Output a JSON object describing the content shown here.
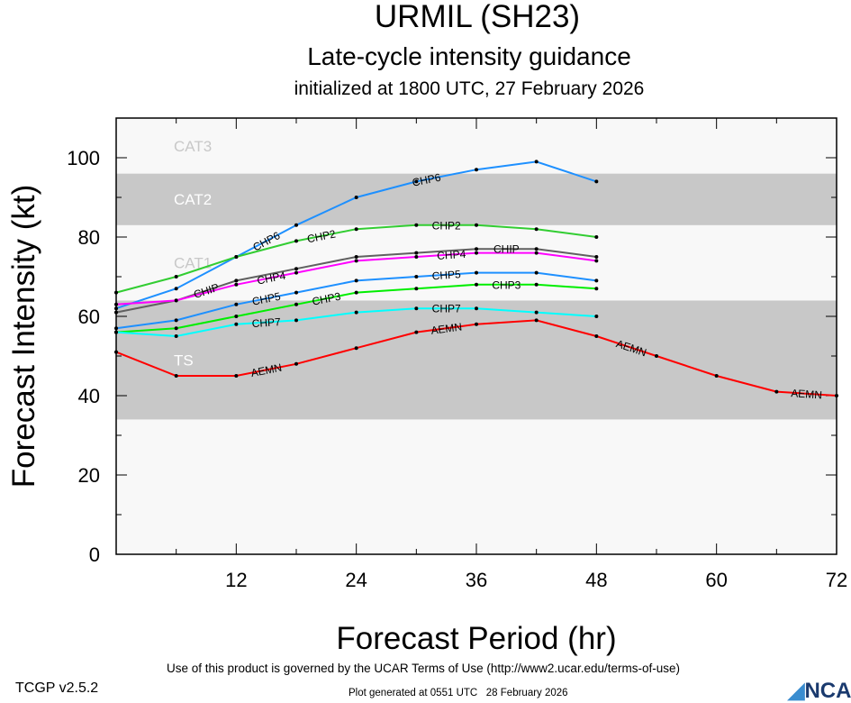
{
  "chart_data": {
    "type": "line",
    "title": "URMIL (SH23)",
    "subtitle": "Late-cycle intensity guidance",
    "subtitle2": "initialized at 1800 UTC, 27 February 2026",
    "xlabel": "Forecast Period (hr)",
    "ylabel": "Forecast Intensity (kt)",
    "xlim": [
      0,
      72
    ],
    "ylim": [
      0,
      110
    ],
    "xticks": [
      12,
      24,
      36,
      48,
      60,
      72
    ],
    "yticks": [
      0,
      20,
      40,
      60,
      80,
      100
    ],
    "bands": [
      {
        "label": "TS",
        "from": 34,
        "to": 64,
        "color": "#c8c8c8"
      },
      {
        "label": "CAT1",
        "from": 64,
        "to": 83,
        "color": "#f8f8f8"
      },
      {
        "label": "CAT2",
        "from": 83,
        "to": 96,
        "color": "#c8c8c8"
      },
      {
        "label": "CAT3",
        "from": 96,
        "to": 110,
        "color": "#f8f8f8"
      }
    ],
    "series": [
      {
        "name": "CHP6",
        "color": "#1e90ff",
        "label_at": [
          15,
          31
        ],
        "x": [
          0,
          6,
          12,
          18,
          24,
          30,
          36,
          42,
          48
        ],
        "y": [
          62,
          67,
          75,
          83,
          90,
          94,
          97,
          99,
          94
        ]
      },
      {
        "name": "CHP2",
        "color": "#32cd32",
        "label_at": [
          16,
          33
        ],
        "x": [
          0,
          6,
          12,
          18,
          24,
          30,
          36,
          42,
          48
        ],
        "y": [
          66,
          70,
          75,
          79,
          82,
          83,
          83,
          82,
          80
        ]
      },
      {
        "name": "CHIP",
        "color": "#606060",
        "label_at": [
          15,
          33
        ],
        "x": [
          0,
          6,
          12,
          18,
          24,
          30,
          36,
          42,
          48
        ],
        "y": [
          61,
          64,
          69,
          72,
          75,
          76,
          77,
          77,
          75
        ]
      },
      {
        "name": "CHP4",
        "color": "#ff00ff",
        "label_at": [
          15.5,
          33.5
        ],
        "x": [
          0,
          6,
          12,
          18,
          24,
          30,
          36,
          42,
          48
        ],
        "y": [
          63,
          64,
          68,
          71,
          74,
          75,
          76,
          76,
          74
        ]
      },
      {
        "name": "CHP5",
        "color": "#1e90ff",
        "label_at": [
          15,
          33
        ],
        "x": [
          0,
          6,
          12,
          18,
          24,
          30,
          36,
          42,
          48
        ],
        "y": [
          57,
          59,
          63,
          66,
          69,
          70,
          71,
          71,
          69
        ]
      },
      {
        "name": "CHP3",
        "color": "#00ee00",
        "label_at": [
          15,
          33
        ],
        "x": [
          0,
          6,
          12,
          18,
          24,
          30,
          36,
          42,
          48
        ],
        "y": [
          56,
          57,
          60,
          63,
          66,
          67,
          68,
          68,
          67
        ]
      },
      {
        "name": "CHP7",
        "color": "#00ffff",
        "label_at": [
          15,
          33
        ],
        "x": [
          0,
          6,
          12,
          18,
          24,
          30,
          36,
          42,
          48
        ],
        "y": [
          56,
          55,
          58,
          59,
          61,
          62,
          62,
          61,
          60
        ]
      },
      {
        "name": "AEMN",
        "color": "#ff0000",
        "label_at": [
          15,
          33,
          51.5,
          69
        ],
        "x": [
          0,
          6,
          12,
          18,
          24,
          30,
          36,
          42,
          48,
          54,
          60,
          66,
          72
        ],
        "y": [
          51,
          45,
          45,
          48,
          52,
          56,
          58,
          59,
          55,
          50,
          45,
          41,
          40
        ]
      }
    ]
  },
  "footer": {
    "version": "TCGP v2.5.2",
    "terms": "Use of this product is governed by the UCAR Terms of Use (http://www2.ucar.edu/terms-of-use)",
    "generated": "Plot generated at 0551 UTC   28 February 2026",
    "logo": "NCAR"
  }
}
